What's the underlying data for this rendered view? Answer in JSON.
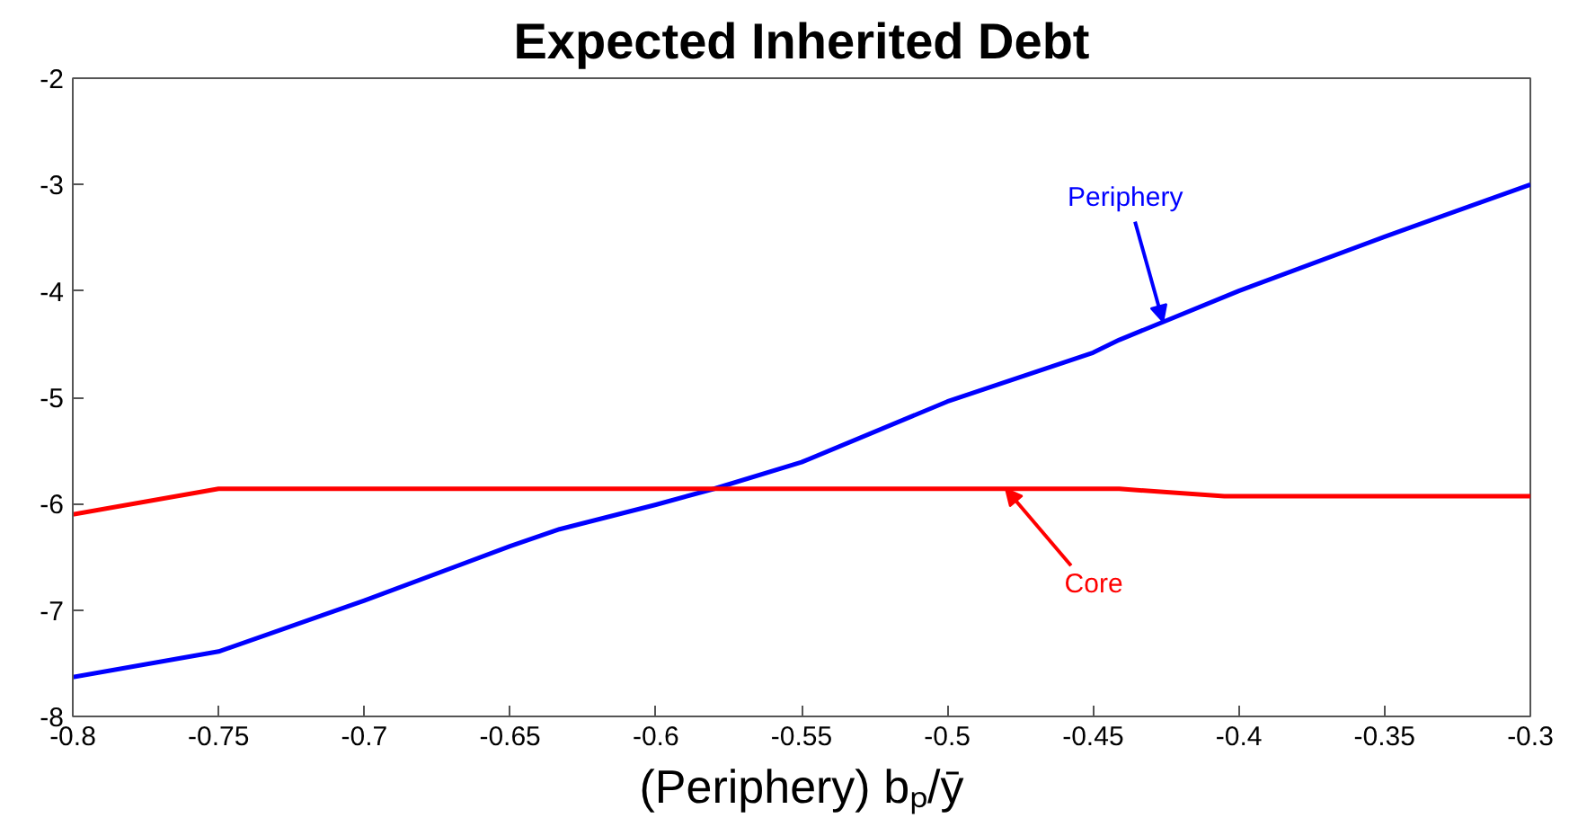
{
  "chart_data": {
    "type": "line",
    "title": "Expected Inherited Debt",
    "xlabel": "(Periphery) bₚ/ȳ",
    "xlim": [
      -0.8,
      -0.3
    ],
    "xticks": [
      -0.8,
      -0.75,
      -0.7,
      -0.65,
      -0.6,
      -0.55,
      -0.5,
      -0.45,
      -0.4,
      -0.35,
      -0.3
    ],
    "ylim": [
      -8,
      -2
    ],
    "yticks": [
      -8,
      -7,
      -6,
      -5,
      -4,
      -3,
      -2
    ],
    "grid": false,
    "line_style": "solid",
    "series": [
      {
        "color": "#0000ff",
        "x": [
          -0.8,
          -0.75,
          -0.7,
          -0.65,
          -0.633,
          -0.6,
          -0.58,
          -0.55,
          -0.5,
          -0.45,
          -0.441,
          -0.4,
          -0.35,
          -0.3
        ],
        "values": [
          -7.63,
          -7.39,
          -6.91,
          -6.4,
          -6.24,
          -6.01,
          -5.86,
          -5.61,
          -5.04,
          -4.58,
          -4.46,
          -4.0,
          -3.49,
          -3.0
        ]
      },
      {
        "color": "#ff0000",
        "x": [
          -0.8,
          -0.75,
          -0.441,
          -0.405,
          -0.3
        ],
        "values": [
          -6.1,
          -5.86,
          -5.86,
          -5.93,
          -5.93
        ]
      }
    ],
    "annotations": [
      {
        "text": "Periphery",
        "x": -0.426,
        "y": -4.29
      },
      {
        "text": "Core",
        "x": -0.48,
        "y": -5.86
      }
    ]
  }
}
